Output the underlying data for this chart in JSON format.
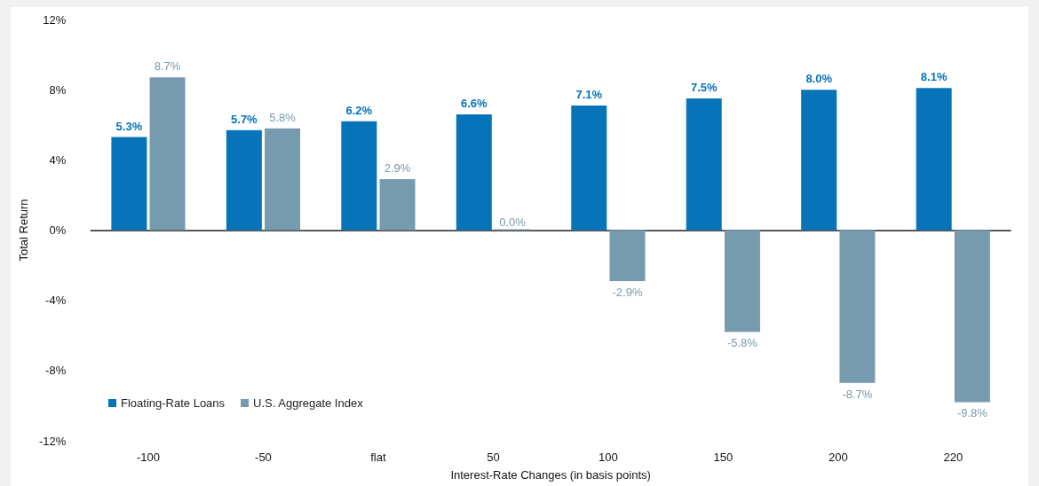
{
  "chart_data": {
    "type": "bar",
    "xlabel": "Interest-Rate Changes (in basis points)",
    "ylabel": "Total Return",
    "categories": [
      "-100",
      "-50",
      "flat",
      "50",
      "100",
      "150",
      "200",
      "220"
    ],
    "series": [
      {
        "name": "Floating-Rate Loans",
        "color": "#0773b8",
        "values": [
          5.3,
          5.7,
          6.2,
          6.6,
          7.1,
          7.5,
          8.0,
          8.1
        ],
        "value_labels": [
          "5.3%",
          "5.7%",
          "6.2%",
          "6.6%",
          "7.1%",
          "7.5%",
          "8.0%",
          "8.1%"
        ]
      },
      {
        "name": "U.S. Aggregate Index",
        "color": "#769bae",
        "values": [
          8.7,
          5.8,
          2.9,
          0.0,
          -2.9,
          -5.8,
          -8.7,
          -9.8
        ],
        "value_labels": [
          "8.7%",
          "5.8%",
          "2.9%",
          "0.0%",
          "-2.9%",
          "-5.8%",
          "-8.7%",
          "-9.8%"
        ]
      }
    ],
    "ylim": [
      -12,
      12
    ],
    "yticks": [
      {
        "value": -12,
        "label": "-12%"
      },
      {
        "value": -8,
        "label": "-8%"
      },
      {
        "value": -4,
        "label": "-4%"
      },
      {
        "value": 0,
        "label": "0%"
      },
      {
        "value": 4,
        "label": "4%"
      },
      {
        "value": 8,
        "label": "8%"
      },
      {
        "value": 12,
        "label": "12%"
      }
    ],
    "legend": "bottom left"
  }
}
